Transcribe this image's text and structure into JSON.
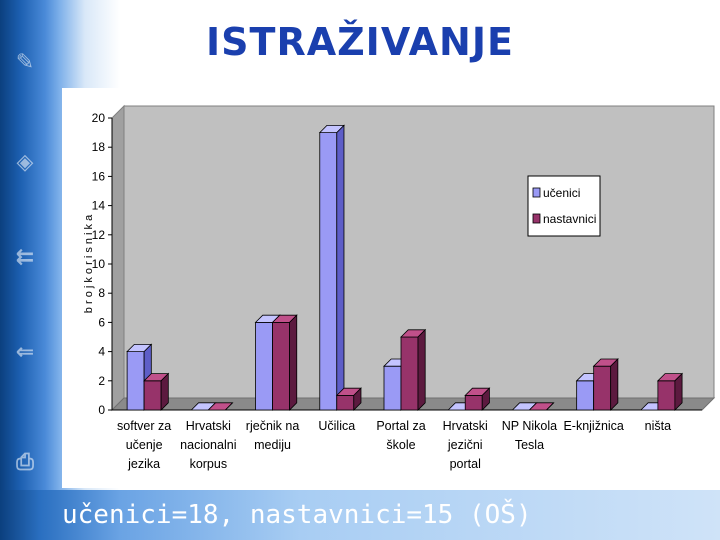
{
  "slide": {
    "title": "ISTRAŽIVANJE",
    "footer": "učenici=18, nastavnici=15 (OŠ)"
  },
  "colors": {
    "ucenici": "#9a9af5",
    "ucenici_dark": "#5e5ec8",
    "nastavnici": "#97336a",
    "nastavnici_dark": "#5c1a3f",
    "plot_bg": "#c0c0c0",
    "title": "#1a3fae"
  },
  "chart_data": {
    "type": "bar",
    "title": "",
    "ylabel": "b r o j k o r i s n i k a",
    "xlabel": "",
    "ylim": [
      0,
      20
    ],
    "yticks": [
      0,
      2,
      4,
      6,
      8,
      10,
      12,
      14,
      16,
      18,
      20
    ],
    "grid": false,
    "legend_position": "right",
    "categories": [
      [
        "softver za",
        "učenje",
        "jezika"
      ],
      [
        "Hrvatski",
        "nacionalni",
        "korpus"
      ],
      [
        "rječnik na",
        "mediju"
      ],
      [
        "Učilica"
      ],
      [
        "Portal za",
        "škole"
      ],
      [
        "Hrvatski",
        "jezični",
        "portal"
      ],
      [
        "NP Nikola",
        "Tesla"
      ],
      [
        "E-knjižnica"
      ],
      [
        "ništa"
      ]
    ],
    "series": [
      {
        "name": "učenici",
        "values": [
          4,
          0,
          6,
          19,
          3,
          0,
          0,
          2,
          0
        ]
      },
      {
        "name": "nastavnici",
        "values": [
          2,
          0,
          6,
          1,
          5,
          1,
          0,
          3,
          2
        ]
      }
    ]
  }
}
